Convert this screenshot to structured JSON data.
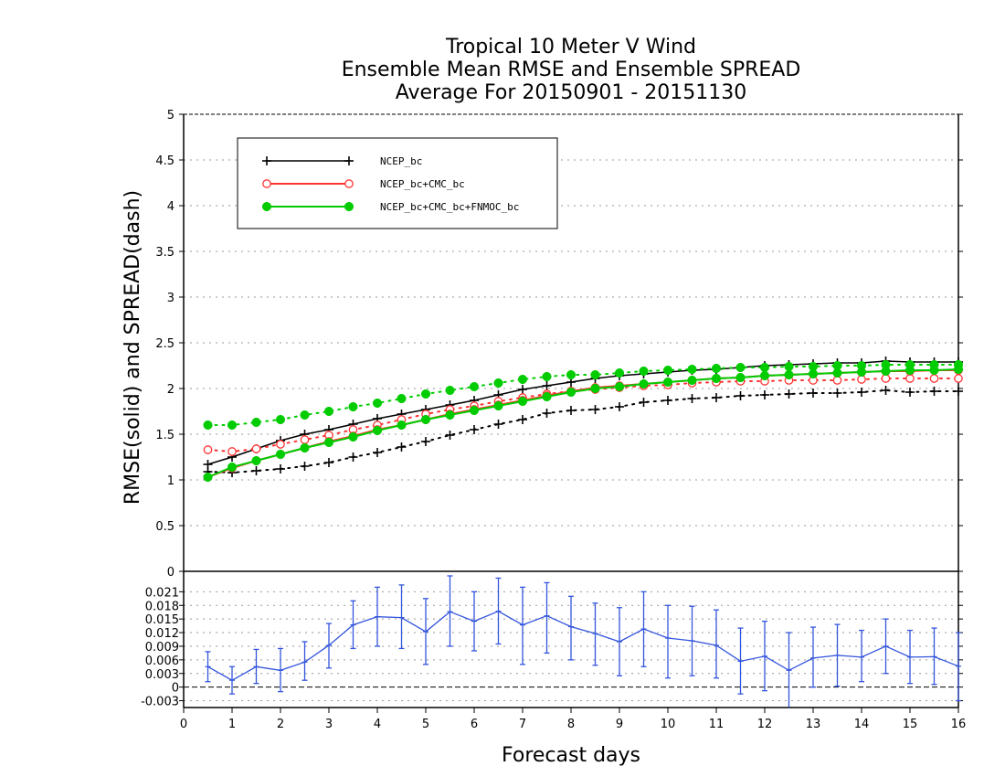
{
  "chart_data": [
    {
      "type": "line",
      "title": [
        "Tropical 10 Meter V Wind",
        "Ensemble Mean RMSE and Ensemble SPREAD",
        "Average For 20150901 - 20151130"
      ],
      "xlabel": "Forecast days",
      "ylabel": "RMSE(solid)  and  SPREAD(dash)",
      "xlim": [
        0,
        16
      ],
      "ylim": [
        0,
        5
      ],
      "xticks": [
        "0",
        "1",
        "2",
        "3",
        "4",
        "5",
        "6",
        "7",
        "8",
        "9",
        "10",
        "11",
        "12",
        "13",
        "14",
        "15",
        "16"
      ],
      "yticks": [
        "0",
        "0.5",
        "1",
        "1.5",
        "2",
        "2.5",
        "3",
        "3.5",
        "4",
        "4.5",
        "5"
      ],
      "grid": true,
      "legend_position": "top-left",
      "x": [
        0.5,
        1,
        1.5,
        2,
        2.5,
        3,
        3.5,
        4,
        4.5,
        5,
        5.5,
        6,
        6.5,
        7,
        7.5,
        8,
        8.5,
        9,
        9.5,
        10,
        10.5,
        11,
        11.5,
        12,
        12.5,
        13,
        13.5,
        14,
        14.5,
        15,
        15.5,
        16
      ],
      "series": [
        {
          "name": "NCEP_bc",
          "color": "#000000",
          "marker": "plus",
          "rmse": [
            1.17,
            1.25,
            1.34,
            1.43,
            1.5,
            1.55,
            1.61,
            1.67,
            1.72,
            1.77,
            1.82,
            1.87,
            1.93,
            1.99,
            2.03,
            2.07,
            2.11,
            2.14,
            2.16,
            2.18,
            2.2,
            2.21,
            2.23,
            2.25,
            2.26,
            2.27,
            2.28,
            2.28,
            2.3,
            2.29,
            2.29,
            2.29
          ],
          "spread": [
            1.09,
            1.08,
            1.1,
            1.12,
            1.15,
            1.19,
            1.25,
            1.3,
            1.36,
            1.42,
            1.49,
            1.55,
            1.61,
            1.66,
            1.73,
            1.76,
            1.77,
            1.8,
            1.85,
            1.87,
            1.89,
            1.9,
            1.92,
            1.93,
            1.94,
            1.95,
            1.95,
            1.96,
            1.98,
            1.96,
            1.97,
            1.97
          ]
        },
        {
          "name": "NCEP_bc+CMC_bc",
          "color": "#ff3333",
          "marker": "open-circle",
          "rmse": [
            1.03,
            1.13,
            1.21,
            1.28,
            1.35,
            1.42,
            1.48,
            1.55,
            1.6,
            1.66,
            1.72,
            1.77,
            1.82,
            1.87,
            1.92,
            1.97,
            2.01,
            2.03,
            2.05,
            2.07,
            2.09,
            2.11,
            2.12,
            2.14,
            2.15,
            2.16,
            2.17,
            2.18,
            2.19,
            2.19,
            2.2,
            2.2
          ],
          "spread": [
            1.33,
            1.31,
            1.34,
            1.39,
            1.44,
            1.49,
            1.55,
            1.6,
            1.66,
            1.72,
            1.77,
            1.81,
            1.86,
            1.9,
            1.94,
            1.97,
            1.99,
            2.01,
            2.03,
            2.04,
            2.06,
            2.07,
            2.08,
            2.08,
            2.09,
            2.09,
            2.09,
            2.1,
            2.11,
            2.11,
            2.11,
            2.11
          ]
        },
        {
          "name": "NCEP_bc+CMC_bc+FNMOC_bc",
          "color": "#00cc00",
          "marker": "filled-circle",
          "rmse": [
            1.03,
            1.14,
            1.21,
            1.28,
            1.35,
            1.41,
            1.47,
            1.54,
            1.6,
            1.66,
            1.71,
            1.76,
            1.81,
            1.86,
            1.91,
            1.96,
            2.0,
            2.02,
            2.05,
            2.07,
            2.09,
            2.11,
            2.12,
            2.14,
            2.15,
            2.16,
            2.17,
            2.18,
            2.19,
            2.2,
            2.2,
            2.21
          ],
          "spread": [
            1.6,
            1.6,
            1.63,
            1.66,
            1.71,
            1.75,
            1.8,
            1.84,
            1.89,
            1.94,
            1.98,
            2.02,
            2.06,
            2.1,
            2.13,
            2.15,
            2.15,
            2.17,
            2.19,
            2.2,
            2.21,
            2.22,
            2.23,
            2.23,
            2.24,
            2.24,
            2.25,
            2.25,
            2.26,
            2.26,
            2.26,
            2.26
          ]
        }
      ]
    },
    {
      "type": "line",
      "xlim": [
        0,
        16
      ],
      "ylim": [
        -0.0045,
        0.0255
      ],
      "yticks": [
        "-0.003",
        "0",
        "0.003",
        "0.006",
        "0.009",
        "0.012",
        "0.015",
        "0.018",
        "0.021"
      ],
      "grid": true,
      "reference_line": 0,
      "color": "#3355dd",
      "x": [
        0.5,
        1,
        1.5,
        2,
        2.5,
        3,
        3.5,
        4,
        4.5,
        5,
        5.5,
        6,
        6.5,
        7,
        7.5,
        8,
        8.5,
        9,
        9.5,
        10,
        10.5,
        11,
        11.5,
        12,
        12.5,
        13,
        13.5,
        14,
        14.5,
        15,
        15.5,
        16
      ],
      "values": [
        0.0045,
        0.0015,
        0.0045,
        0.0037,
        0.0055,
        0.0092,
        0.0137,
        0.0155,
        0.0153,
        0.0122,
        0.0166,
        0.0145,
        0.0167,
        0.0137,
        0.0157,
        0.0133,
        0.0118,
        0.01,
        0.0128,
        0.0108,
        0.0102,
        0.0092,
        0.0057,
        0.0068,
        0.0037,
        0.0064,
        0.007,
        0.0066,
        0.009,
        0.0066,
        0.0067,
        0.0046
      ],
      "error_low": [
        0.0012,
        -0.0015,
        0.0008,
        -0.001,
        0.0015,
        0.0042,
        0.0085,
        0.009,
        0.0085,
        0.005,
        0.009,
        0.008,
        0.0095,
        0.005,
        0.0075,
        0.006,
        0.0048,
        0.0025,
        0.0045,
        0.002,
        0.0025,
        0.002,
        -0.0015,
        -0.0008,
        -0.0048,
        0.0,
        0.0002,
        0.0012,
        0.003,
        0.0008,
        0.0006,
        -0.003
      ],
      "error_high": [
        0.0078,
        0.0045,
        0.0083,
        0.0085,
        0.01,
        0.014,
        0.019,
        0.022,
        0.0225,
        0.0195,
        0.0245,
        0.021,
        0.024,
        0.022,
        0.023,
        0.02,
        0.0185,
        0.0175,
        0.021,
        0.018,
        0.0178,
        0.017,
        0.013,
        0.0145,
        0.012,
        0.0132,
        0.0138,
        0.0125,
        0.015,
        0.0125,
        0.013,
        0.012
      ]
    }
  ]
}
